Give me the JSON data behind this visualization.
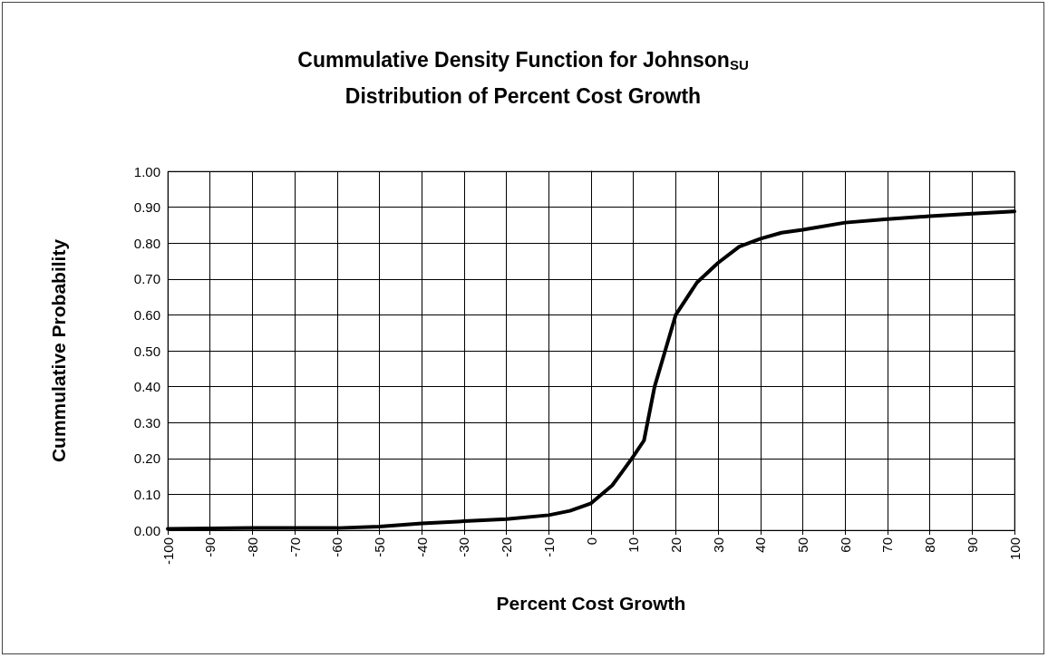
{
  "chart_data": {
    "type": "line",
    "title": "Cummulative Density Function for Johnson$_{SU}$\nDistribution of Percent Cost Growth",
    "xlabel": "Percent Cost Growth",
    "ylabel": "Cummulative Probability",
    "x": [
      -100,
      -90,
      -80,
      -70,
      -60,
      -50,
      -40,
      -30,
      -20,
      -10,
      -5,
      0,
      5,
      7.5,
      10,
      12.5,
      15,
      17.5,
      20,
      25,
      30,
      35,
      40,
      45,
      50,
      60,
      70,
      80,
      90,
      100
    ],
    "series": [
      {
        "color": "#000000",
        "values": [
          0.004,
          0.005,
          0.006,
          0.006,
          0.006,
          0.01,
          0.019,
          0.025,
          0.031,
          0.042,
          0.054,
          0.075,
          0.125,
          0.165,
          0.206,
          0.25,
          0.4,
          0.5,
          0.6,
          0.69,
          0.745,
          0.79,
          0.812,
          0.829,
          0.837,
          0.857,
          0.867,
          0.875,
          0.882,
          0.888
        ]
      }
    ],
    "xlim": [
      -100,
      100
    ],
    "xticks": [
      -100,
      -90,
      -80,
      -70,
      -60,
      -50,
      -40,
      -30,
      -20,
      -10,
      0,
      10,
      20,
      30,
      40,
      50,
      60,
      70,
      80,
      90,
      100
    ],
    "ylim": [
      0,
      1
    ],
    "yticks": [
      {
        "value": 0,
        "label": "0.00"
      },
      {
        "value": 0.1,
        "label": "0.10"
      },
      {
        "value": 0.2,
        "label": "0.20"
      },
      {
        "value": 0.3,
        "label": "0.30"
      },
      {
        "value": 0.4,
        "label": "0.40"
      },
      {
        "value": 0.5,
        "label": "0.50"
      },
      {
        "value": 0.6,
        "label": "0.60"
      },
      {
        "value": 0.7,
        "label": "0.70"
      },
      {
        "value": 0.8,
        "label": "0.80"
      },
      {
        "value": 0.9,
        "label": "0.90"
      },
      {
        "value": 1,
        "label": "1.00"
      }
    ],
    "grid": true,
    "marker": "none",
    "line_style": "solid"
  }
}
